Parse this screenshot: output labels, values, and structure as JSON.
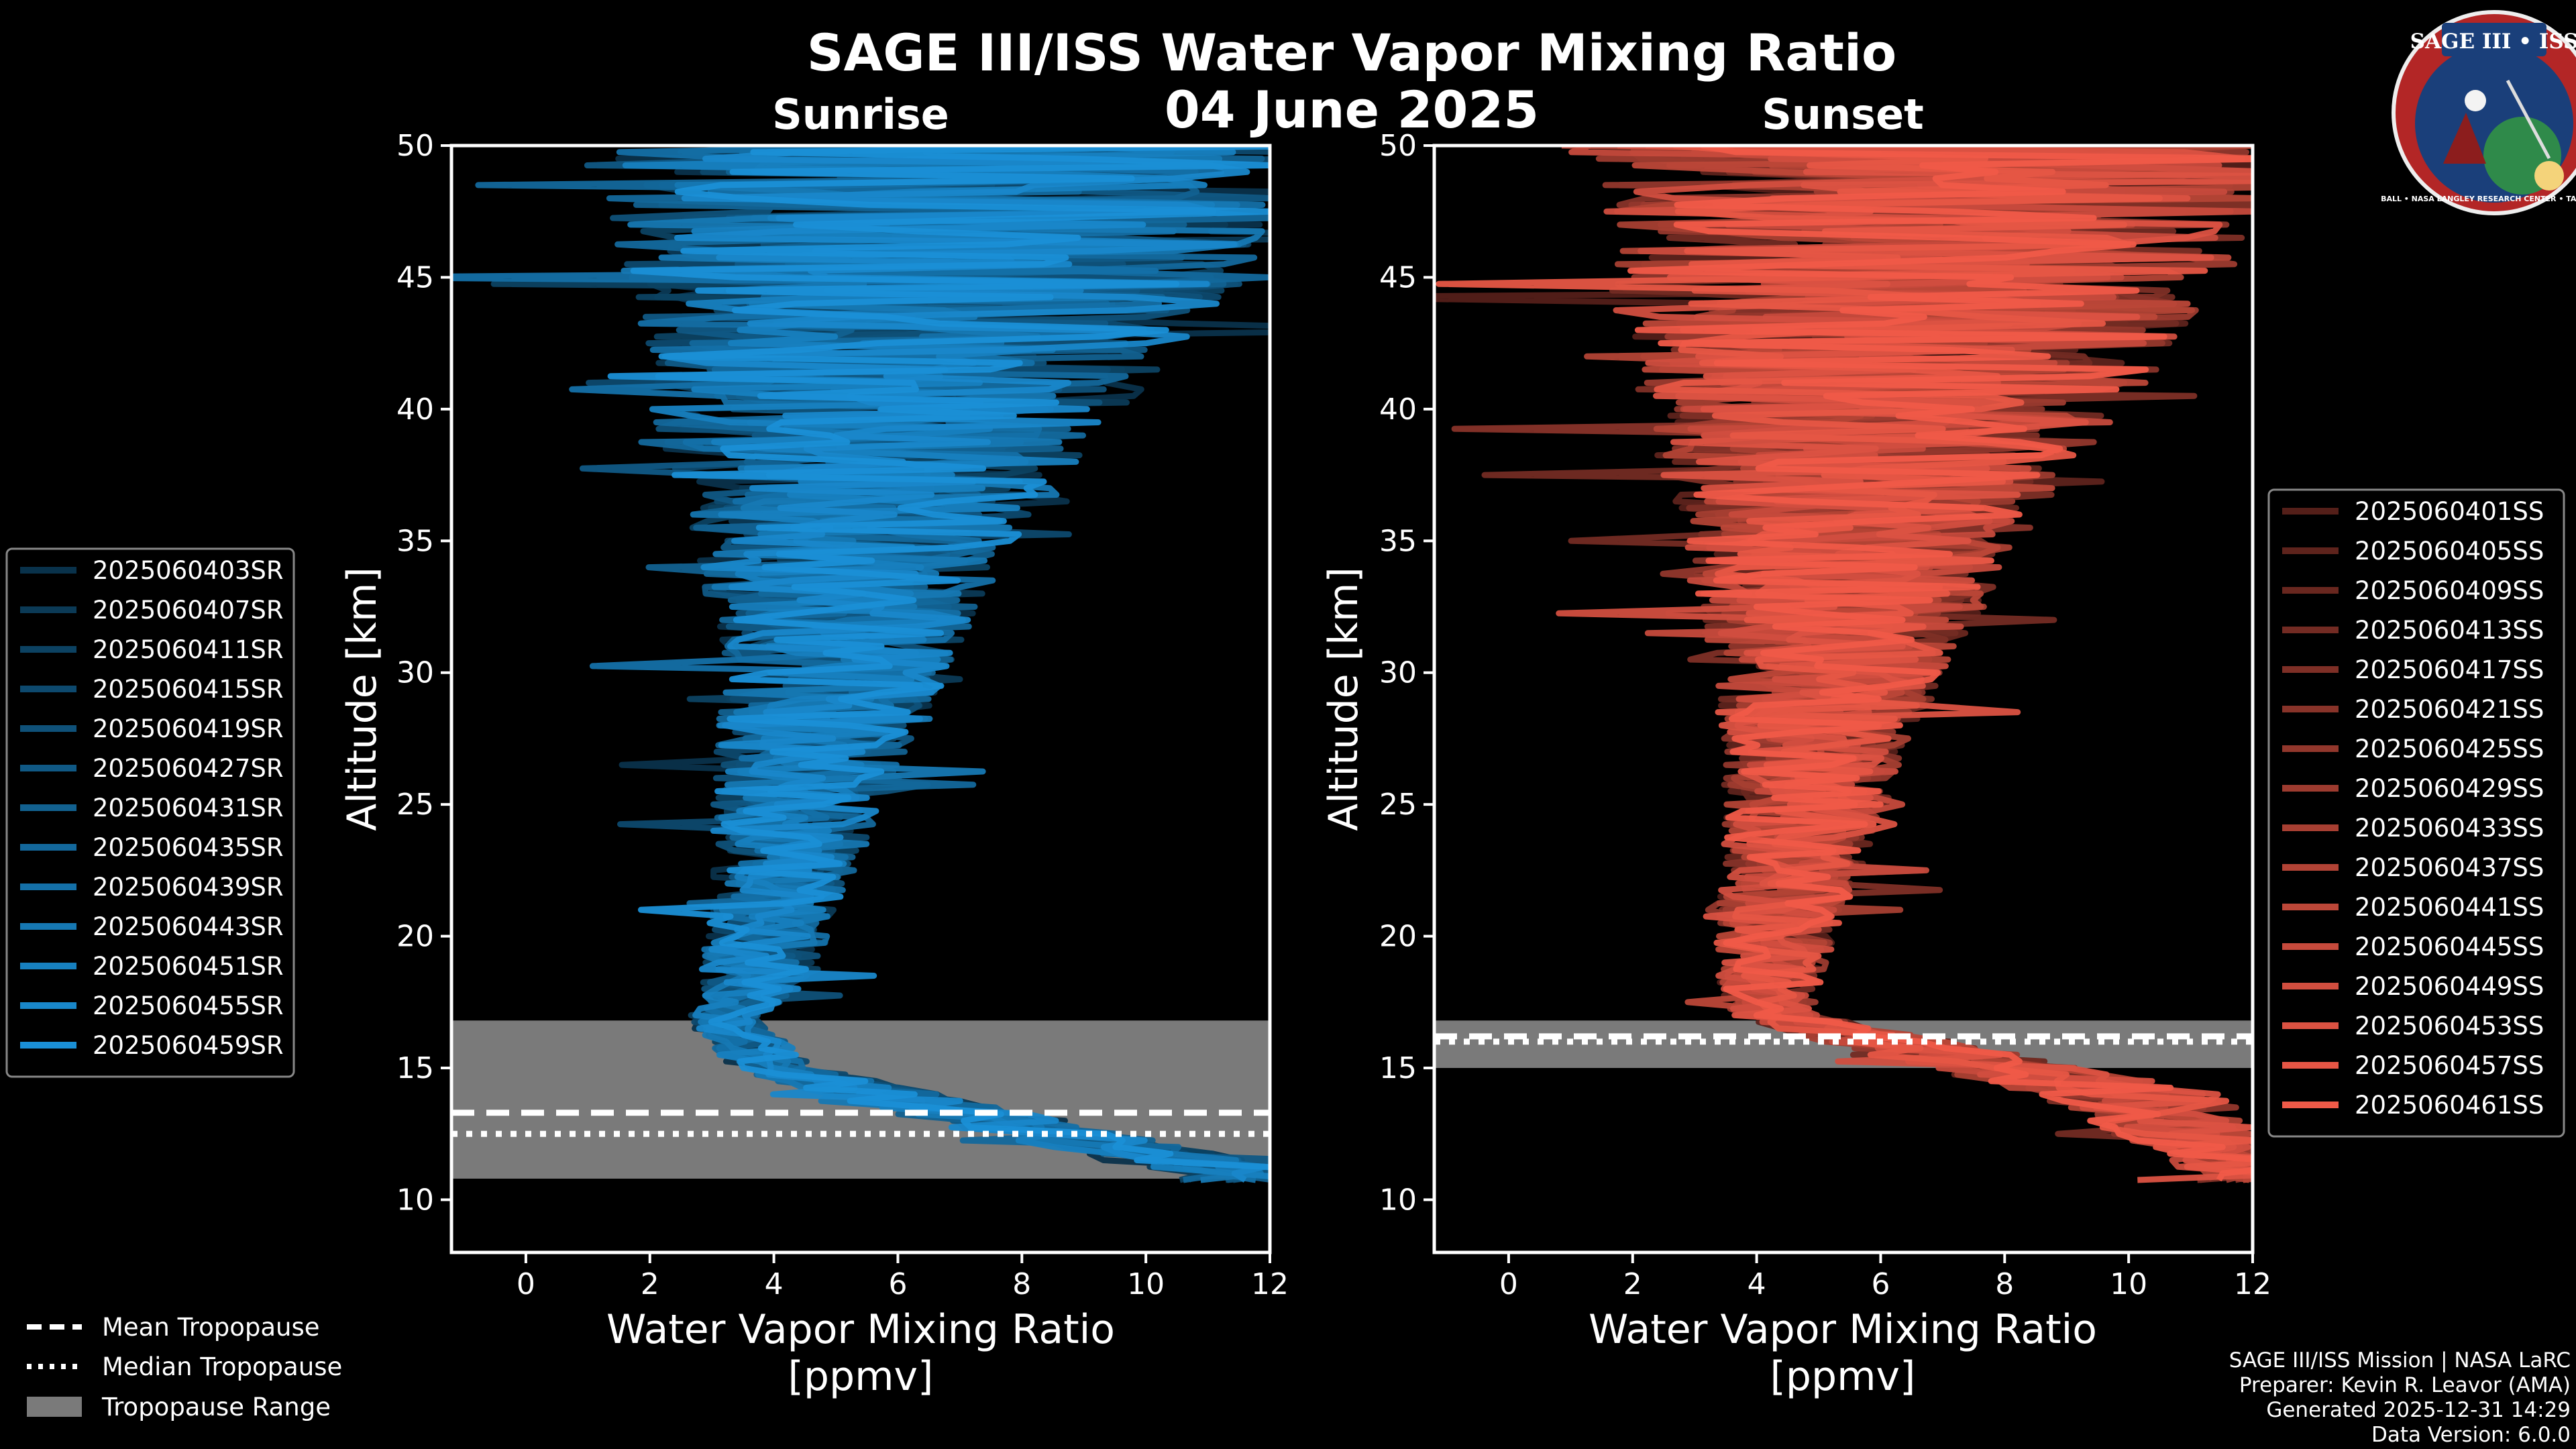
{
  "title": "SAGE III/ISS Water Vapor Mixing Ratio",
  "date": "04 June 2025",
  "logo": {
    "text": "SAGE III • ISS",
    "ring_text": "BALL • NASA LANGLEY RESEARCH CENTER • TAS • ESA"
  },
  "footer": {
    "mission": "SAGE III/ISS Mission | NASA LaRC",
    "preparer": "Preparer: Kevin R. Leavor (AMA)",
    "generated": "Generated 2025-12-31 14:29",
    "version": "Data Version: 6.0.0"
  },
  "tropopause_legend": [
    {
      "label": "Mean Tropopause",
      "style": "dashed"
    },
    {
      "label": "Median Tropopause",
      "style": "dotted"
    },
    {
      "label": "Tropopause Range",
      "style": "fill"
    }
  ],
  "colors": {
    "sunrise": "#1a8fd6",
    "sunset": "#f05a48",
    "range": "#7a7a7a",
    "background": "#000000"
  },
  "chart_data": [
    {
      "type": "line",
      "title": "Sunrise",
      "xlabel": "Water Vapor Mixing Ratio\n[ppmv]",
      "ylabel": "Altitude [km]",
      "xlim": [
        -1.2,
        12
      ],
      "ylim": [
        8,
        50
      ],
      "xticks": [
        0,
        2,
        4,
        6,
        8,
        10,
        12
      ],
      "yticks": [
        10,
        15,
        20,
        25,
        30,
        35,
        40,
        45,
        50
      ],
      "series_names": [
        "2025060403SR",
        "2025060407SR",
        "2025060411SR",
        "2025060415SR",
        "2025060419SR",
        "2025060427SR",
        "2025060431SR",
        "2025060435SR",
        "2025060439SR",
        "2025060443SR",
        "2025060451SR",
        "2025060455SR",
        "2025060459SR"
      ],
      "tropopause": {
        "mean": 13.3,
        "median": 12.5,
        "range": [
          10.8,
          16.8
        ]
      },
      "profile": {
        "altitude": [
          11,
          13,
          15,
          16.8,
          18,
          20,
          22,
          25,
          28,
          30,
          33,
          36,
          38,
          40,
          42,
          45,
          48,
          50
        ],
        "median_ppmv": [
          11.5,
          7.5,
          4.0,
          3.2,
          3.6,
          3.9,
          4.1,
          4.4,
          4.8,
          5.0,
          5.2,
          5.4,
          5.6,
          5.8,
          6.2,
          6.6,
          6.8,
          6.8
        ],
        "spread_ppmv": [
          1.0,
          1.2,
          0.7,
          0.6,
          0.8,
          1.0,
          1.1,
          1.4,
          1.7,
          1.9,
          2.3,
          2.8,
          3.3,
          3.8,
          4.3,
          5.0,
          5.5,
          6.0
        ]
      }
    },
    {
      "type": "line",
      "title": "Sunset",
      "xlabel": "Water Vapor Mixing Ratio\n[ppmv]",
      "ylabel": "Altitude [km]",
      "xlim": [
        -1.2,
        12
      ],
      "ylim": [
        8,
        50
      ],
      "xticks": [
        0,
        2,
        4,
        6,
        8,
        10,
        12
      ],
      "yticks": [
        10,
        15,
        20,
        25,
        30,
        35,
        40,
        45,
        50
      ],
      "series_names": [
        "2025060401SS",
        "2025060405SS",
        "2025060409SS",
        "2025060413SS",
        "2025060417SS",
        "2025060421SS",
        "2025060425SS",
        "2025060429SS",
        "2025060433SS",
        "2025060437SS",
        "2025060441SS",
        "2025060445SS",
        "2025060449SS",
        "2025060453SS",
        "2025060457SS",
        "2025060461SS"
      ],
      "tropopause": {
        "mean": 16.2,
        "median": 16.0,
        "range": [
          15.0,
          16.8
        ]
      },
      "profile": {
        "altitude": [
          11,
          14,
          15.5,
          17,
          18,
          20,
          22,
          25,
          28,
          30,
          33,
          36,
          38,
          40,
          42,
          45,
          48,
          50
        ],
        "median_ppmv": [
          12,
          10,
          7.0,
          4.3,
          4.2,
          4.3,
          4.5,
          4.8,
          5.0,
          5.2,
          5.4,
          5.6,
          5.8,
          6.0,
          6.3,
          6.6,
          6.8,
          6.8
        ],
        "spread_ppmv": [
          1.0,
          1.5,
          1.2,
          0.7,
          0.8,
          1.0,
          1.1,
          1.3,
          1.6,
          1.9,
          2.4,
          2.9,
          3.4,
          3.9,
          4.4,
          5.0,
          5.5,
          6.0
        ]
      }
    }
  ]
}
